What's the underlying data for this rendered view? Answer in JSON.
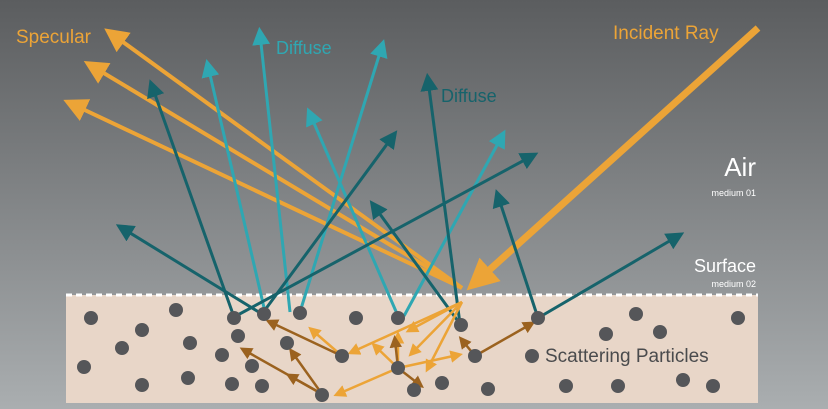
{
  "labels": {
    "specular": "Specular",
    "diffuse_top": "Diffuse",
    "diffuse_right": "Diffuse",
    "incident_ray": "Incident Ray",
    "air": "Air",
    "air_sub": "medium 01",
    "surface": "Surface",
    "surface_sub": "medium 02",
    "scattering": "Scattering Particles"
  },
  "colors": {
    "background_top": "#5b5d5f",
    "background_bottom": "#aaaeb0",
    "medium": "#e8d6c8",
    "particle": "#555659",
    "specular_ray": "#eca437",
    "diffuse_teal": "#2fa7b2",
    "diffuse_dark": "#16636b",
    "internal_dark": "#9b621f",
    "internal_light": "#eca437",
    "white_text": "#ffffff"
  }
}
